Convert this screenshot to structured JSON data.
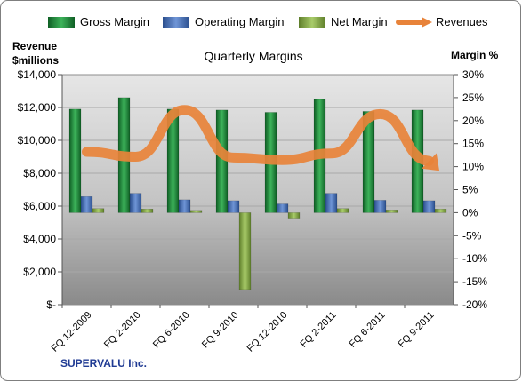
{
  "chart_data": {
    "type": "bar",
    "title": "Quarterly Margins",
    "ylabel_left": [
      "Revenue",
      "$millions"
    ],
    "ylabel_right": "Margin %",
    "company": "SUPERVALU Inc.",
    "categories": [
      "FQ 12-2009",
      "FQ 2-2010",
      "FQ 6-2010",
      "FQ 9-2010",
      "FQ 12-2010",
      "FQ 2-2011",
      "FQ 6-2011",
      "FQ 9-2011"
    ],
    "left_axis": {
      "min": 0,
      "max": 14000,
      "ticks": [
        "$-",
        "$2,000",
        "$4,000",
        "$6,000",
        "$8,000",
        "$10,000",
        "$12,000",
        "$14,000"
      ]
    },
    "right_axis": {
      "min": -20,
      "max": 30,
      "ticks": [
        "-20%",
        "-15%",
        "-10%",
        "-5%",
        "0%",
        "5%",
        "10%",
        "15%",
        "20%",
        "25%",
        "30%"
      ]
    },
    "legend_position": "top",
    "series": [
      {
        "name": "Gross Margin",
        "axis": "right",
        "kind": "bar",
        "color": "#1E8A3A",
        "values": [
          22.5,
          25.0,
          22.5,
          22.3,
          21.8,
          24.6,
          22.0,
          22.3
        ]
      },
      {
        "name": "Operating Margin",
        "axis": "right",
        "kind": "bar",
        "color": "#4472C4",
        "values": [
          3.5,
          4.2,
          2.8,
          2.6,
          1.9,
          4.2,
          2.7,
          2.6
        ]
      },
      {
        "name": "Net Margin",
        "axis": "right",
        "kind": "bar",
        "color": "#8DB04C",
        "values": [
          0.9,
          0.8,
          0.5,
          -16.7,
          -1.2,
          0.9,
          0.6,
          0.8
        ]
      },
      {
        "name": "Revenues",
        "axis": "left",
        "kind": "line",
        "color": "#E8833A",
        "values": [
          9300,
          9000,
          11850,
          8950,
          8800,
          9200,
          11600,
          8750
        ]
      }
    ],
    "grid": true
  }
}
